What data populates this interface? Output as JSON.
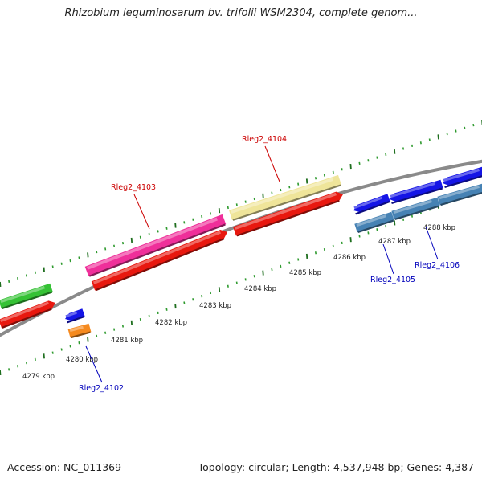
{
  "title": "Rhizobium leguminosarum bv. trifolii WSM2304, complete genom...",
  "footer": {
    "accession": "Accession: NC_011369",
    "summary": "Topology: circular; Length: 4,537,948 bp; Genes: 4,387"
  },
  "colors": {
    "backbone": "#8a8a8a",
    "tick_major": "#1e6e1e",
    "tick_minor": "#2e9a2e",
    "forward_gene_red": "#e8180f",
    "label_red": "#cc0000",
    "label_blue": "#0000bb",
    "reverse_gene_steelblue": "#4682b4",
    "blue": "#1515e6",
    "orange": "#f58a1f",
    "pink": "#ef2f9a",
    "khaki": "#efe59a",
    "green": "#35c235"
  },
  "scale": {
    "unit": "kbp",
    "labels": [
      "4279 kbp",
      "4280 kbp",
      "4281 kbp",
      "4282 kbp",
      "4283 kbp",
      "4284 kbp",
      "4285 kbp",
      "4286 kbp",
      "4287 kbp",
      "4288 kbp"
    ]
  },
  "genes": {
    "labeled": [
      {
        "name": "Rleg2_4102",
        "label_color": "blue"
      },
      {
        "name": "Rleg2_4103",
        "label_color": "red"
      },
      {
        "name": "Rleg2_4104",
        "label_color": "red"
      },
      {
        "name": "Rleg2_4105",
        "label_color": "blue"
      },
      {
        "name": "Rleg2_4106",
        "label_color": "blue"
      }
    ]
  }
}
